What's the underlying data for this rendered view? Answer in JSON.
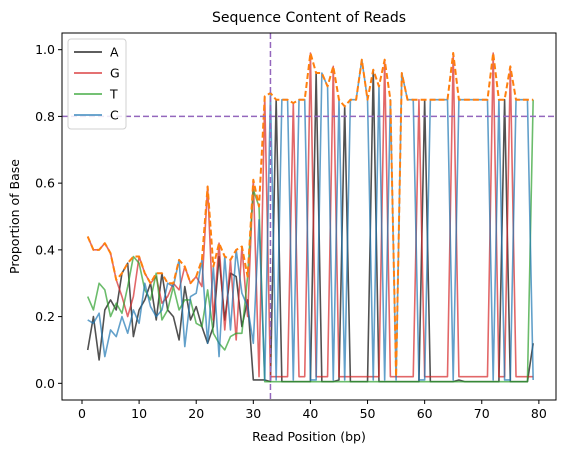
{
  "chart_data": {
    "type": "line",
    "title": "Sequence Content of Reads",
    "xlabel": "Read Position (bp)",
    "ylabel": "Proportion of Base",
    "xlim": [
      -3.5,
      83
    ],
    "ylim": [
      -0.05,
      1.05
    ],
    "xticks": [
      0,
      10,
      20,
      30,
      40,
      50,
      60,
      70,
      80
    ],
    "yticks": [
      0.0,
      0.2,
      0.4,
      0.6,
      0.8,
      1.0
    ],
    "grid": false,
    "legend_placement": "top-left",
    "reference_lines": {
      "horizontal_y": 0.8,
      "vertical_x": 33,
      "color": "#9467bd"
    },
    "max_line": {
      "style": "dashed",
      "color": "#ff7f0e"
    },
    "x": [
      1,
      2,
      3,
      4,
      5,
      6,
      7,
      8,
      9,
      10,
      11,
      12,
      13,
      14,
      15,
      16,
      17,
      18,
      19,
      20,
      21,
      22,
      23,
      24,
      25,
      26,
      27,
      28,
      29,
      30,
      31,
      32,
      33,
      34,
      35,
      36,
      37,
      38,
      39,
      40,
      41,
      42,
      43,
      44,
      45,
      46,
      47,
      48,
      49,
      50,
      51,
      52,
      53,
      54,
      55,
      56,
      57,
      58,
      59,
      60,
      61,
      62,
      63,
      64,
      65,
      66,
      67,
      68,
      69,
      70,
      71,
      72,
      73,
      74,
      75,
      76,
      77,
      78,
      79
    ],
    "series": [
      {
        "name": "A",
        "color": "#333333",
        "values": [
          0.1,
          0.2,
          0.07,
          0.22,
          0.25,
          0.22,
          0.33,
          0.36,
          0.14,
          0.22,
          0.25,
          0.3,
          0.19,
          0.33,
          0.22,
          0.2,
          0.13,
          0.29,
          0.19,
          0.23,
          0.17,
          0.12,
          0.17,
          0.38,
          0.19,
          0.33,
          0.32,
          0.17,
          0.25,
          0.01,
          0.01,
          0.01,
          0.005,
          0.85,
          0.005,
          0.005,
          0.005,
          0.005,
          0.005,
          0.005,
          0.93,
          0.005,
          0.005,
          0.005,
          0.01,
          0.83,
          0.005,
          0.005,
          0.005,
          0.005,
          0.94,
          0.005,
          0.005,
          0.005,
          0.005,
          0.005,
          0.005,
          0.005,
          0.005,
          0.85,
          0.005,
          0.005,
          0.005,
          0.005,
          0.005,
          0.01,
          0.005,
          0.005,
          0.005,
          0.005,
          0.005,
          0.005,
          0.005,
          0.85,
          0.005,
          0.005,
          0.005,
          0.005,
          0.12
        ]
      },
      {
        "name": "G",
        "color": "#d62728",
        "values": [
          0.44,
          0.4,
          0.4,
          0.42,
          0.39,
          0.31,
          0.26,
          0.2,
          0.26,
          0.38,
          0.33,
          0.3,
          0.32,
          0.24,
          0.26,
          0.3,
          0.28,
          0.35,
          0.3,
          0.32,
          0.29,
          0.59,
          0.19,
          0.42,
          0.16,
          0.37,
          0.13,
          0.41,
          0.2,
          0.61,
          0.02,
          0.86,
          0.02,
          0.02,
          0.02,
          0.02,
          0.84,
          0.02,
          0.02,
          0.99,
          0.02,
          0.02,
          0.02,
          0.95,
          0.02,
          0.02,
          0.02,
          0.02,
          0.02,
          0.02,
          0.02,
          0.02,
          0.97,
          0.02,
          0.02,
          0.02,
          0.02,
          0.02,
          0.85,
          0.02,
          0.02,
          0.02,
          0.02,
          0.02,
          0.99,
          0.02,
          0.02,
          0.02,
          0.02,
          0.02,
          0.02,
          0.99,
          0.02,
          0.02,
          0.95,
          0.02,
          0.02,
          0.02,
          0.02
        ]
      },
      {
        "name": "T",
        "color": "#2ca02c",
        "values": [
          0.26,
          0.22,
          0.3,
          0.28,
          0.2,
          0.24,
          0.21,
          0.29,
          0.38,
          0.36,
          0.28,
          0.25,
          0.33,
          0.19,
          0.22,
          0.29,
          0.22,
          0.25,
          0.25,
          0.18,
          0.17,
          0.28,
          0.15,
          0.12,
          0.1,
          0.14,
          0.15,
          0.15,
          0.32,
          0.58,
          0.53,
          0.005,
          0.005,
          0.005,
          0.005,
          0.005,
          0.005,
          0.005,
          0.005,
          0.005,
          0.005,
          0.005,
          0.005,
          0.005,
          0.005,
          0.005,
          0.005,
          0.005,
          0.005,
          0.005,
          0.005,
          0.005,
          0.005,
          0.005,
          0.005,
          0.005,
          0.005,
          0.005,
          0.005,
          0.005,
          0.005,
          0.005,
          0.005,
          0.005,
          0.005,
          0.005,
          0.005,
          0.005,
          0.005,
          0.005,
          0.005,
          0.005,
          0.005,
          0.005,
          0.005,
          0.005,
          0.005,
          0.005,
          0.85
        ]
      },
      {
        "name": "C",
        "color": "#1f77b4",
        "values": [
          0.19,
          0.18,
          0.21,
          0.08,
          0.16,
          0.14,
          0.2,
          0.15,
          0.22,
          0.18,
          0.3,
          0.23,
          0.2,
          0.22,
          0.3,
          0.29,
          0.37,
          0.11,
          0.26,
          0.27,
          0.37,
          0.12,
          0.35,
          0.08,
          0.38,
          0.16,
          0.4,
          0.27,
          0.23,
          0.12,
          0.49,
          0.01,
          0.87,
          0.01,
          0.85,
          0.85,
          0.01,
          0.85,
          0.85,
          0.01,
          0.01,
          0.93,
          0.89,
          0.01,
          0.85,
          0.01,
          0.85,
          0.85,
          0.97,
          0.85,
          0.01,
          0.89,
          0.01,
          0.85,
          0.01,
          0.93,
          0.85,
          0.85,
          0.01,
          0.01,
          0.85,
          0.85,
          0.85,
          0.85,
          0.01,
          0.85,
          0.85,
          0.85,
          0.85,
          0.85,
          0.85,
          0.01,
          0.85,
          0.01,
          0.01,
          0.85,
          0.85,
          0.85,
          0.01
        ]
      }
    ]
  }
}
